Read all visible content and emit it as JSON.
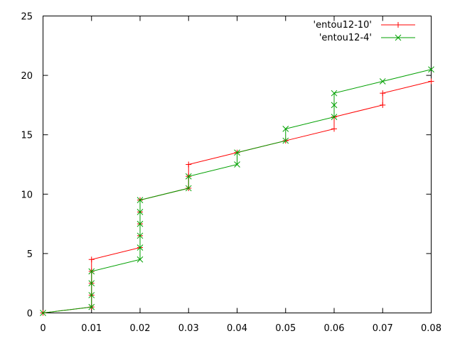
{
  "chart_data": {
    "type": "line",
    "title": "",
    "xlabel": "",
    "ylabel": "",
    "xlim": [
      0,
      0.08
    ],
    "ylim": [
      0,
      25
    ],
    "x_ticks": [
      0,
      0.01,
      0.02,
      0.03,
      0.04,
      0.05,
      0.06,
      0.07,
      0.08
    ],
    "x_tick_labels": [
      "0",
      "0.01",
      "0.02",
      "0.03",
      "0.04",
      "0.05",
      "0.06",
      "0.07",
      "0.08"
    ],
    "y_ticks": [
      0,
      5,
      10,
      15,
      20,
      25
    ],
    "y_tick_labels": [
      "0",
      "5",
      "10",
      "15",
      "20",
      "25"
    ],
    "grid": false,
    "legend_position": "top-right",
    "series": [
      {
        "name": "'entou12-10'",
        "color": "#ff0000",
        "marker": "plus",
        "points": [
          [
            0,
            0
          ],
          [
            0.01,
            0.5
          ],
          [
            0.01,
            1.5
          ],
          [
            0.01,
            2.5
          ],
          [
            0.01,
            3.5
          ],
          [
            0.01,
            4.5
          ],
          [
            0.02,
            5.5
          ],
          [
            0.02,
            6.5
          ],
          [
            0.02,
            7.5
          ],
          [
            0.02,
            8.5
          ],
          [
            0.02,
            9.5
          ],
          [
            0.03,
            10.5
          ],
          [
            0.03,
            11.5
          ],
          [
            0.03,
            12.5
          ],
          [
            0.04,
            13.5
          ],
          [
            0.05,
            14.5
          ],
          [
            0.06,
            15.5
          ],
          [
            0.06,
            16.5
          ],
          [
            0.07,
            17.5
          ],
          [
            0.07,
            18.5
          ],
          [
            0.08,
            19.5
          ]
        ]
      },
      {
        "name": "'entou12-4'",
        "color": "#00a000",
        "marker": "cross",
        "points": [
          [
            0,
            0
          ],
          [
            0.01,
            0.5
          ],
          [
            0.01,
            1.5
          ],
          [
            0.01,
            2.5
          ],
          [
            0.01,
            3.5
          ],
          [
            0.02,
            4.5
          ],
          [
            0.02,
            5.5
          ],
          [
            0.02,
            6.5
          ],
          [
            0.02,
            7.5
          ],
          [
            0.02,
            8.5
          ],
          [
            0.02,
            9.5
          ],
          [
            0.03,
            10.5
          ],
          [
            0.03,
            11.5
          ],
          [
            0.04,
            12.5
          ],
          [
            0.04,
            13.5
          ],
          [
            0.05,
            14.5
          ],
          [
            0.05,
            15.5
          ],
          [
            0.06,
            16.5
          ],
          [
            0.06,
            17.5
          ],
          [
            0.06,
            18.5
          ],
          [
            0.07,
            19.5
          ],
          [
            0.08,
            20.5
          ]
        ]
      }
    ]
  }
}
